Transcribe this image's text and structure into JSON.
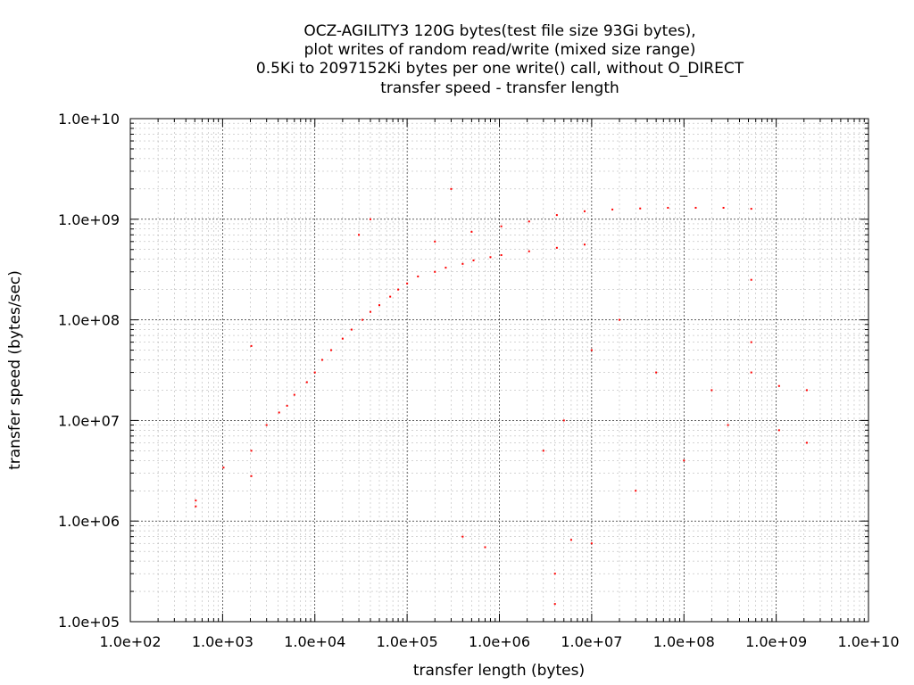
{
  "chart_data": {
    "type": "scatter",
    "title": [
      "OCZ-AGILITY3 120G bytes(test file size 93Gi bytes),",
      "plot writes of random read/write (mixed size range)",
      "0.5Ki to 2097152Ki bytes per one write() call, without O_DIRECT",
      "transfer speed - transfer length"
    ],
    "xlabel": "transfer length (bytes)",
    "ylabel": "transfer speed (bytes/sec)",
    "x_scale": "log",
    "y_scale": "log",
    "xlim": [
      100,
      10000000000
    ],
    "ylim": [
      100000,
      10000000000
    ],
    "x_tick_labels": [
      "1.0e+02",
      "1.0e+03",
      "1.0e+04",
      "1.0e+05",
      "1.0e+06",
      "1.0e+07",
      "1.0e+08",
      "1.0e+09",
      "1.0e+10"
    ],
    "y_tick_labels": [
      "1.0e+05",
      "1.0e+06",
      "1.0e+07",
      "1.0e+08",
      "1.0e+09",
      "1.0e+10"
    ],
    "grid": true,
    "point_color": "#ff0000",
    "series": [
      {
        "points": [
          [
            512,
            1400000
          ],
          [
            512,
            1600000
          ],
          [
            1024,
            3400000
          ],
          [
            2048,
            2800000
          ],
          [
            2048,
            5000000
          ],
          [
            2048,
            55000000
          ],
          [
            3000,
            9000000
          ],
          [
            4096,
            12000000
          ],
          [
            5000,
            14000000
          ],
          [
            6000,
            18000000
          ],
          [
            8192,
            24000000
          ],
          [
            10000,
            30000000
          ],
          [
            12000,
            40000000
          ],
          [
            15000,
            50000000
          ],
          [
            20000,
            65000000
          ],
          [
            25000,
            80000000
          ],
          [
            32768,
            100000000
          ],
          [
            40000,
            120000000
          ],
          [
            50000,
            140000000
          ],
          [
            65536,
            170000000
          ],
          [
            80000,
            200000000
          ],
          [
            100000,
            230000000
          ],
          [
            131072,
            270000000
          ],
          [
            200000,
            300000000
          ],
          [
            262144,
            330000000
          ],
          [
            400000,
            360000000
          ],
          [
            524288,
            390000000
          ],
          [
            800000,
            420000000
          ],
          [
            1048576,
            440000000
          ],
          [
            2097152,
            480000000
          ],
          [
            4194304,
            520000000
          ],
          [
            8388608,
            560000000
          ],
          [
            200000,
            600000000
          ],
          [
            500000,
            750000000
          ],
          [
            1048576,
            850000000
          ],
          [
            2097152,
            950000000
          ],
          [
            4194304,
            1100000000
          ],
          [
            8388608,
            1200000000
          ],
          [
            16777216,
            1250000000
          ],
          [
            33554432,
            1280000000
          ],
          [
            67108864,
            1300000000
          ],
          [
            134217728,
            1300000000
          ],
          [
            268435456,
            1300000000
          ],
          [
            536870912,
            1270000000
          ],
          [
            536870912,
            250000000
          ],
          [
            536870912,
            60000000
          ],
          [
            536870912,
            30000000
          ],
          [
            1073741824,
            22000000
          ],
          [
            2147483648,
            20000000
          ],
          [
            1073741824,
            8000000
          ],
          [
            2147483648,
            6000000
          ],
          [
            300000000,
            9000000
          ],
          [
            200000000,
            20000000
          ],
          [
            100000000,
            4000000
          ],
          [
            50000000,
            30000000
          ],
          [
            30000000,
            2000000
          ],
          [
            20000000,
            100000000
          ],
          [
            10000000,
            50000000
          ],
          [
            5000000,
            10000000
          ],
          [
            3000000,
            5000000
          ],
          [
            4000000,
            300000
          ],
          [
            4000000,
            150000
          ],
          [
            400000,
            700000
          ],
          [
            700000,
            550000
          ],
          [
            6000000,
            650000
          ],
          [
            10000000,
            600000
          ],
          [
            40000,
            1000000000
          ],
          [
            30000,
            700000000
          ],
          [
            300000,
            2000000000
          ]
        ]
      }
    ]
  }
}
